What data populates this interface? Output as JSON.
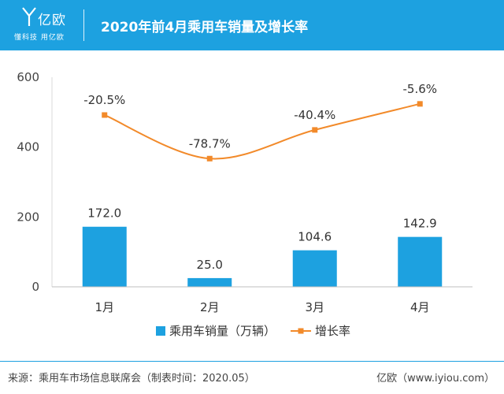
{
  "header": {
    "logo_text": "亿欧",
    "logo_slogan": "懂科技 用亿欧",
    "title": "2020年前4月乘用车销量及增长率"
  },
  "colors": {
    "header_bg": "#1da1e0",
    "bar": "#1da1e0",
    "line": "#f28a2a"
  },
  "chart_data": {
    "type": "bar",
    "categories": [
      "1月",
      "2月",
      "3月",
      "4月"
    ],
    "series": [
      {
        "name": "乘用车销量（万辆）",
        "type": "bar",
        "values": [
          172.0,
          25.0,
          104.6,
          142.9
        ],
        "labels": [
          "172.0",
          "25.0",
          "104.6",
          "142.9"
        ]
      },
      {
        "name": "增长率",
        "type": "line",
        "values": [
          -20.5,
          -78.7,
          -40.4,
          -5.6
        ],
        "labels": [
          "-20.5%",
          "-78.7%",
          "-40.4%",
          "-5.6%"
        ]
      }
    ],
    "ylim": [
      0,
      600
    ],
    "yticks": [
      "0",
      "200",
      "400",
      "600"
    ],
    "legend_position": "bottom"
  },
  "footer": {
    "source": "来源：乘用车市场信息联席会（制表时间：2020.05）",
    "brand": "亿欧（www.iyiou.com）"
  }
}
